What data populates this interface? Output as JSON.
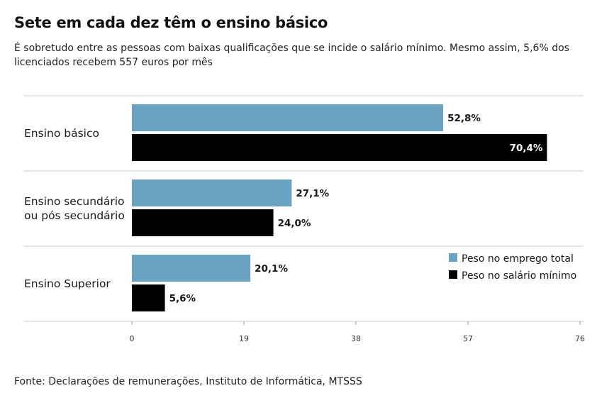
{
  "header": {
    "title": "Sete em cada dez têm o ensino básico",
    "subtitle": "É sobretudo entre as pessoas com baixas qualificações que se incide o salário mínimo. Mesmo assim, 5,6% dos licenciados recebem 557 euros por mês"
  },
  "footer": {
    "source": "Fonte: Declarações de remunerações, Instituto de Informática, MTSSS"
  },
  "chart_data": {
    "type": "bar",
    "orientation": "horizontal",
    "categories": [
      [
        "Ensino básico"
      ],
      [
        "Ensino secundário",
        "ou pós secundário"
      ],
      [
        "Ensino Superior"
      ]
    ],
    "series": [
      {
        "name": "Peso no emprego total",
        "color": "#6aa3c2",
        "values": [
          52.8,
          27.1,
          20.1
        ],
        "labels": [
          "52,8%",
          "27,1%",
          "20,1%"
        ]
      },
      {
        "name": "Peso no salário mínimo",
        "color": "#000000",
        "values": [
          70.4,
          24.0,
          5.6
        ],
        "labels": [
          "70,4%",
          "24,0%",
          "5,6%"
        ]
      }
    ],
    "xlim": [
      0,
      76
    ],
    "xticks": [
      "0",
      "19",
      "38",
      "57",
      "76"
    ],
    "grid": true,
    "legend_position": "bottom-right"
  }
}
